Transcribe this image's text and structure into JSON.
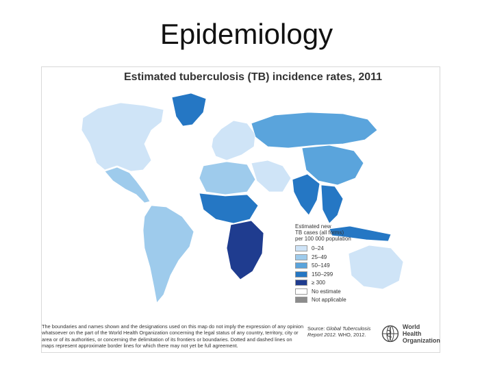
{
  "slide": {
    "title": "Epidemiology"
  },
  "map": {
    "title": "Estimated tuberculosis (TB) incidence rates, 2011",
    "legend": {
      "title": "Estimated new\nTB cases (all forms)\nper 100 000 population",
      "items": [
        {
          "label": "0–24",
          "color": "#cfe4f7"
        },
        {
          "label": "25–49",
          "color": "#9ecbec"
        },
        {
          "label": "50–149",
          "color": "#5aa4dc"
        },
        {
          "label": "150–299",
          "color": "#2577c4"
        },
        {
          "label": "≥ 300",
          "color": "#1f3c8f"
        },
        {
          "label": "No estimate",
          "color": "#ffffff"
        },
        {
          "label": "Not applicable",
          "color": "#8c8c8c"
        }
      ]
    },
    "regions": [
      {
        "name": "North America",
        "category": "0–24",
        "color": "#cfe4f7"
      },
      {
        "name": "Greenland",
        "category": "150–299",
        "color": "#2577c4"
      },
      {
        "name": "Mexico and Central America",
        "category": "25–49",
        "color": "#9ecbec"
      },
      {
        "name": "South America",
        "category": "25–49",
        "color": "#9ecbec"
      },
      {
        "name": "Western Europe",
        "category": "0–24",
        "color": "#cfe4f7"
      },
      {
        "name": "Russia",
        "category": "50–149",
        "color": "#5aa4dc"
      },
      {
        "name": "North Africa",
        "category": "25–49",
        "color": "#9ecbec"
      },
      {
        "name": "West Africa",
        "category": "150–299",
        "color": "#2577c4"
      },
      {
        "name": "Southern Africa",
        "category": "≥ 300",
        "color": "#1f3c8f"
      },
      {
        "name": "Middle East",
        "category": "0–24",
        "color": "#cfe4f7"
      },
      {
        "name": "India",
        "category": "150–299",
        "color": "#2577c4"
      },
      {
        "name": "China",
        "category": "50–149",
        "color": "#5aa4dc"
      },
      {
        "name": "South East Asia",
        "category": "150–299",
        "color": "#2577c4"
      },
      {
        "name": "Indonesia",
        "category": "150–299",
        "color": "#2577c4"
      },
      {
        "name": "Australia",
        "category": "0–24",
        "color": "#cfe4f7"
      }
    ],
    "footnote": "The boundaries and names shown and the designations used on this map do not imply the expression of any opinion whatsoever on the part of the World Health Organization concerning the legal status of any country, territory, city or area or of its authorities, or concerning the delimitation of its frontiers or boundaries. Dotted and dashed lines on maps represent approximate border lines for which there may not yet be full agreement.",
    "source_label": "Source:",
    "source_title": "Global Tuberculosis Report 2012.",
    "source_rest": "WHO, 2012.",
    "who_name": "World Health\nOrganization"
  }
}
